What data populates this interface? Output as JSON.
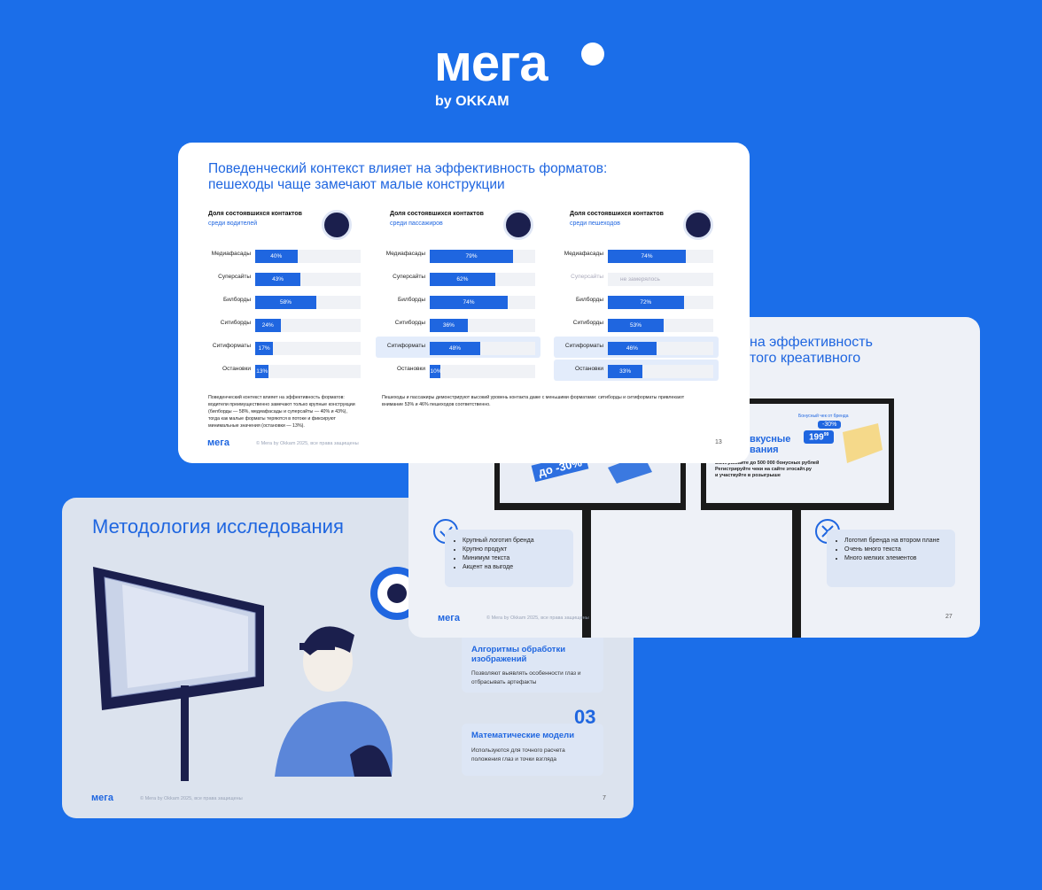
{
  "logo": {
    "text": "мега",
    "sub": "by OKKAM"
  },
  "copyright": "© Mera by Okkam 2025, все права защищены",
  "slides": [
    {
      "title": [
        "Поведенческий контекст влияет на эффективность форматов:",
        "пешеходы чаще замечают малые конструкции"
      ],
      "charts": [
        {
          "type": "bar",
          "heading": "Доля состоявшихся контактов",
          "subheading": "среди водителей",
          "categories": [
            "Медиафасады",
            "Суперсайты",
            "Билборды",
            "Ситиборды",
            "Ситиформаты",
            "Остановки"
          ],
          "values": [
            40,
            43,
            58,
            24,
            17,
            13
          ],
          "value_labels": [
            "40%",
            "43%",
            "58%",
            "24%",
            "17%",
            "13%"
          ],
          "xlim": [
            0,
            100
          ],
          "color": "#1f66e0"
        },
        {
          "type": "bar",
          "heading": "Доля состоявшихся контактов",
          "subheading": "среди пассажиров",
          "categories": [
            "Медиафасады",
            "Суперсайты",
            "Билборды",
            "Ситиборды",
            "Ситиформаты",
            "Остановки"
          ],
          "values": [
            79,
            62,
            74,
            36,
            48,
            10
          ],
          "value_labels": [
            "79%",
            "62%",
            "74%",
            "36%",
            "48%",
            "10%"
          ],
          "xlim": [
            0,
            100
          ],
          "color": "#1f66e0",
          "highlight": [
            4
          ]
        },
        {
          "type": "bar",
          "heading": "Доля состоявшихся контактов",
          "subheading": "среди пешеходов",
          "categories": [
            "Медиафасады",
            "Суперсайты",
            "Билборды",
            "Ситиборды",
            "Ситиформаты",
            "Остановки"
          ],
          "values": [
            74,
            null,
            72,
            53,
            46,
            33
          ],
          "value_labels": [
            "74%",
            "не замерялось",
            "72%",
            "53%",
            "46%",
            "33%"
          ],
          "xlim": [
            0,
            100
          ],
          "color": "#1f66e0",
          "highlight": [
            4,
            5
          ]
        }
      ],
      "notes": [
        "Поведенческий контекст влияет на эффективность форматов: водители преимущественно замечают только крупные конструкции (билборды — 58%, медиафасады и суперсайты — 40% и 43%), тогда как малые форматы теряются в потоке и фиксируют минимальные значения (остановки — 13%).",
        "Пешеходы и пассажиры демонстрируют высокий уровень контакта даже с меньшими форматами: ситиборды и ситиформаты привлекают внимание 53% и 46% пешеходов соответственно."
      ],
      "page": "13"
    },
    {
      "title": [
        "на эффективность",
        "того креативного"
      ],
      "ad_left": "до -30%",
      "ad_right": {
        "tag": "Бонусный чек от бренда",
        "discount": "-30%",
        "price": "199",
        "cents": "99",
        "headline": [
          "вкусные",
          "вания"
        ],
        "text": [
          "Выигрывайте до 500 000 бонусных рублей",
          "Регистрируйте чеки на сайте этосайт.ру",
          "и участвуйте в розыгрыше"
        ]
      },
      "good": [
        "Крупный логотип бренда",
        "Крупно продукт",
        "Минимум текста",
        "Акцент на выгоде"
      ],
      "bad": [
        "Логотип бренда на втором плане",
        "Очень много текста",
        "Много мелких элементов"
      ],
      "page": "27"
    },
    {
      "title": "Методология исследования",
      "cards": [
        {
          "title": "Алгоритмы обработки изображений",
          "text": "Позволяют выявлять особенности глаз и отбрасывать артефакты"
        },
        {
          "number": "03",
          "title": "Математические модели",
          "text": "Используются для точного расчета положения глаз и точки взгляда"
        }
      ],
      "page": "7"
    }
  ]
}
